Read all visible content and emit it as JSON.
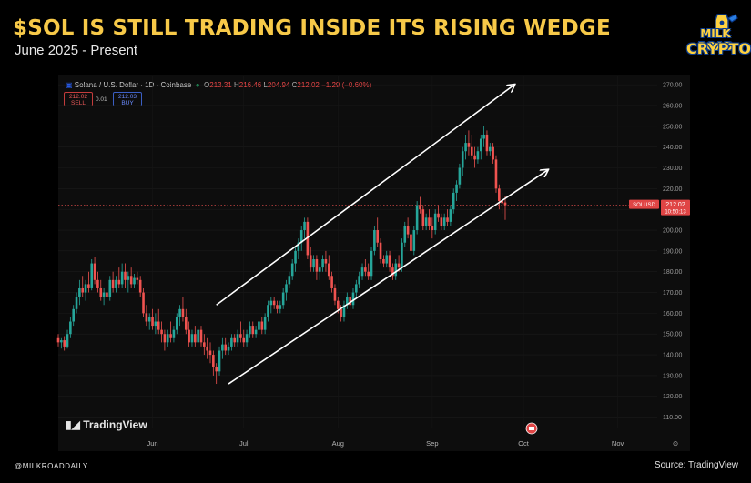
{
  "headline": "$SOL IS STILL TRADING INSIDE ITS RISING WEDGE",
  "subhead": "June 2025 - Present",
  "logo": {
    "line1": "MILK ROAD",
    "line2": "CRYPTO"
  },
  "ohlc": {
    "symbol": "Solana / U.S. Dollar · 1D · Coinbase",
    "o_label": "O",
    "o": "213.31",
    "h_label": "H",
    "h": "216.46",
    "l_label": "L",
    "l": "204.94",
    "c_label": "C",
    "c": "212.02",
    "change": "−1.29 (−0.60%)"
  },
  "trade": {
    "sell_price": "212.02",
    "sell_label": "SELL",
    "spread": "0.01",
    "buy_price": "212.03",
    "buy_label": "BUY"
  },
  "price_tag": {
    "symbol": "SOLUSD",
    "price": "212.02",
    "countdown": "10:50:13"
  },
  "tv_logo": "TradingView",
  "handle": "@MILKROADDAILY",
  "source": "Source: TradingView",
  "colors": {
    "up": "#26a69a",
    "down": "#ef5350",
    "accent": "#f7c948",
    "line": "#ffffff"
  },
  "chart_data": {
    "type": "candlestick",
    "title": "$SOL IS STILL TRADING INSIDE ITS RISING WEDGE",
    "subtitle": "June 2025 - Present",
    "x_labels": [
      "Jun",
      "Jul",
      "Aug",
      "Sep",
      "Oct",
      "Nov"
    ],
    "y_ticks": [
      110,
      120,
      130,
      140,
      150,
      160,
      170,
      180,
      190,
      200,
      210,
      220,
      230,
      240,
      250,
      260,
      270
    ],
    "ylim": [
      105,
      274
    ],
    "current_price": 212.02,
    "trendlines": [
      {
        "name": "upper",
        "from": {
          "x": "2025-06-22",
          "y": 164
        },
        "to": {
          "x": "2025-09-28",
          "y": 270
        }
      },
      {
        "name": "lower",
        "from": {
          "x": "2025-06-26",
          "y": 126
        },
        "to": {
          "x": "2025-10-09",
          "y": 229
        }
      }
    ],
    "ohlc": [
      {
        "d": "2025-05-01",
        "o": 148,
        "h": 150,
        "l": 144,
        "c": 146
      },
      {
        "d": "2025-05-02",
        "o": 146,
        "h": 148,
        "l": 143,
        "c": 147
      },
      {
        "d": "2025-05-03",
        "o": 147,
        "h": 149,
        "l": 142,
        "c": 144
      },
      {
        "d": "2025-05-04",
        "o": 144,
        "h": 152,
        "l": 143,
        "c": 150
      },
      {
        "d": "2025-05-05",
        "o": 150,
        "h": 158,
        "l": 148,
        "c": 156
      },
      {
        "d": "2025-05-06",
        "o": 156,
        "h": 164,
        "l": 154,
        "c": 162
      },
      {
        "d": "2025-05-07",
        "o": 162,
        "h": 170,
        "l": 160,
        "c": 168
      },
      {
        "d": "2025-05-08",
        "o": 168,
        "h": 176,
        "l": 164,
        "c": 172
      },
      {
        "d": "2025-05-09",
        "o": 172,
        "h": 178,
        "l": 168,
        "c": 170
      },
      {
        "d": "2025-05-10",
        "o": 170,
        "h": 176,
        "l": 166,
        "c": 174
      },
      {
        "d": "2025-05-11",
        "o": 174,
        "h": 180,
        "l": 170,
        "c": 172
      },
      {
        "d": "2025-05-12",
        "o": 172,
        "h": 186,
        "l": 171,
        "c": 184
      },
      {
        "d": "2025-05-13",
        "o": 184,
        "h": 187,
        "l": 174,
        "c": 176
      },
      {
        "d": "2025-05-14",
        "o": 176,
        "h": 180,
        "l": 170,
        "c": 172
      },
      {
        "d": "2025-05-15",
        "o": 172,
        "h": 176,
        "l": 166,
        "c": 168
      },
      {
        "d": "2025-05-16",
        "o": 168,
        "h": 172,
        "l": 164,
        "c": 170
      },
      {
        "d": "2025-05-17",
        "o": 170,
        "h": 174,
        "l": 166,
        "c": 168
      },
      {
        "d": "2025-05-18",
        "o": 168,
        "h": 178,
        "l": 166,
        "c": 176
      },
      {
        "d": "2025-05-19",
        "o": 176,
        "h": 180,
        "l": 170,
        "c": 172
      },
      {
        "d": "2025-05-20",
        "o": 172,
        "h": 178,
        "l": 170,
        "c": 176
      },
      {
        "d": "2025-05-21",
        "o": 176,
        "h": 182,
        "l": 172,
        "c": 174
      },
      {
        "d": "2025-05-22",
        "o": 174,
        "h": 184,
        "l": 172,
        "c": 180
      },
      {
        "d": "2025-05-23",
        "o": 180,
        "h": 184,
        "l": 172,
        "c": 176
      },
      {
        "d": "2025-05-24",
        "o": 176,
        "h": 180,
        "l": 170,
        "c": 178
      },
      {
        "d": "2025-05-25",
        "o": 178,
        "h": 182,
        "l": 172,
        "c": 174
      },
      {
        "d": "2025-05-26",
        "o": 174,
        "h": 179,
        "l": 172,
        "c": 177
      },
      {
        "d": "2025-05-27",
        "o": 177,
        "h": 180,
        "l": 174,
        "c": 176
      },
      {
        "d": "2025-05-28",
        "o": 176,
        "h": 178,
        "l": 168,
        "c": 170
      },
      {
        "d": "2025-05-29",
        "o": 170,
        "h": 172,
        "l": 158,
        "c": 160
      },
      {
        "d": "2025-05-30",
        "o": 160,
        "h": 164,
        "l": 154,
        "c": 156
      },
      {
        "d": "2025-05-31",
        "o": 156,
        "h": 160,
        "l": 152,
        "c": 158
      },
      {
        "d": "2025-06-01",
        "o": 158,
        "h": 162,
        "l": 152,
        "c": 154
      },
      {
        "d": "2025-06-02",
        "o": 154,
        "h": 160,
        "l": 150,
        "c": 156
      },
      {
        "d": "2025-06-03",
        "o": 156,
        "h": 162,
        "l": 150,
        "c": 152
      },
      {
        "d": "2025-06-04",
        "o": 152,
        "h": 156,
        "l": 146,
        "c": 150
      },
      {
        "d": "2025-06-05",
        "o": 150,
        "h": 152,
        "l": 142,
        "c": 146
      },
      {
        "d": "2025-06-06",
        "o": 146,
        "h": 152,
        "l": 144,
        "c": 150
      },
      {
        "d": "2025-06-07",
        "o": 150,
        "h": 156,
        "l": 146,
        "c": 148
      },
      {
        "d": "2025-06-08",
        "o": 148,
        "h": 154,
        "l": 146,
        "c": 152
      },
      {
        "d": "2025-06-09",
        "o": 152,
        "h": 160,
        "l": 150,
        "c": 158
      },
      {
        "d": "2025-06-10",
        "o": 158,
        "h": 164,
        "l": 154,
        "c": 162
      },
      {
        "d": "2025-06-11",
        "o": 162,
        "h": 168,
        "l": 156,
        "c": 158
      },
      {
        "d": "2025-06-12",
        "o": 158,
        "h": 162,
        "l": 150,
        "c": 152
      },
      {
        "d": "2025-06-13",
        "o": 152,
        "h": 156,
        "l": 144,
        "c": 146
      },
      {
        "d": "2025-06-14",
        "o": 146,
        "h": 152,
        "l": 144,
        "c": 150
      },
      {
        "d": "2025-06-15",
        "o": 150,
        "h": 154,
        "l": 144,
        "c": 146
      },
      {
        "d": "2025-06-16",
        "o": 146,
        "h": 154,
        "l": 144,
        "c": 152
      },
      {
        "d": "2025-06-17",
        "o": 152,
        "h": 154,
        "l": 144,
        "c": 146
      },
      {
        "d": "2025-06-18",
        "o": 146,
        "h": 150,
        "l": 140,
        "c": 144
      },
      {
        "d": "2025-06-19",
        "o": 144,
        "h": 148,
        "l": 138,
        "c": 142
      },
      {
        "d": "2025-06-20",
        "o": 142,
        "h": 146,
        "l": 136,
        "c": 140
      },
      {
        "d": "2025-06-21",
        "o": 140,
        "h": 142,
        "l": 130,
        "c": 134
      },
      {
        "d": "2025-06-22",
        "o": 134,
        "h": 136,
        "l": 126,
        "c": 132
      },
      {
        "d": "2025-06-23",
        "o": 132,
        "h": 144,
        "l": 130,
        "c": 142
      },
      {
        "d": "2025-06-24",
        "o": 142,
        "h": 148,
        "l": 138,
        "c": 145
      },
      {
        "d": "2025-06-25",
        "o": 145,
        "h": 148,
        "l": 140,
        "c": 142
      },
      {
        "d": "2025-06-26",
        "o": 142,
        "h": 146,
        "l": 140,
        "c": 144
      },
      {
        "d": "2025-06-27",
        "o": 144,
        "h": 150,
        "l": 142,
        "c": 148
      },
      {
        "d": "2025-06-28",
        "o": 148,
        "h": 150,
        "l": 144,
        "c": 146
      },
      {
        "d": "2025-06-29",
        "o": 146,
        "h": 152,
        "l": 144,
        "c": 150
      },
      {
        "d": "2025-06-30",
        "o": 150,
        "h": 156,
        "l": 146,
        "c": 148
      },
      {
        "d": "2025-07-01",
        "o": 148,
        "h": 152,
        "l": 144,
        "c": 146
      },
      {
        "d": "2025-07-02",
        "o": 146,
        "h": 152,
        "l": 144,
        "c": 150
      },
      {
        "d": "2025-07-03",
        "o": 150,
        "h": 156,
        "l": 148,
        "c": 154
      },
      {
        "d": "2025-07-04",
        "o": 154,
        "h": 156,
        "l": 148,
        "c": 150
      },
      {
        "d": "2025-07-05",
        "o": 150,
        "h": 154,
        "l": 148,
        "c": 152
      },
      {
        "d": "2025-07-06",
        "o": 152,
        "h": 158,
        "l": 150,
        "c": 156
      },
      {
        "d": "2025-07-07",
        "o": 156,
        "h": 158,
        "l": 150,
        "c": 152
      },
      {
        "d": "2025-07-08",
        "o": 152,
        "h": 160,
        "l": 150,
        "c": 158
      },
      {
        "d": "2025-07-09",
        "o": 158,
        "h": 166,
        "l": 156,
        "c": 164
      },
      {
        "d": "2025-07-10",
        "o": 164,
        "h": 168,
        "l": 160,
        "c": 166
      },
      {
        "d": "2025-07-11",
        "o": 166,
        "h": 168,
        "l": 162,
        "c": 164
      },
      {
        "d": "2025-07-12",
        "o": 164,
        "h": 166,
        "l": 160,
        "c": 162
      },
      {
        "d": "2025-07-13",
        "o": 162,
        "h": 166,
        "l": 160,
        "c": 164
      },
      {
        "d": "2025-07-14",
        "o": 164,
        "h": 172,
        "l": 162,
        "c": 170
      },
      {
        "d": "2025-07-15",
        "o": 170,
        "h": 176,
        "l": 166,
        "c": 174
      },
      {
        "d": "2025-07-16",
        "o": 174,
        "h": 180,
        "l": 172,
        "c": 178
      },
      {
        "d": "2025-07-17",
        "o": 178,
        "h": 186,
        "l": 176,
        "c": 184
      },
      {
        "d": "2025-07-18",
        "o": 184,
        "h": 192,
        "l": 180,
        "c": 190
      },
      {
        "d": "2025-07-19",
        "o": 190,
        "h": 196,
        "l": 186,
        "c": 194
      },
      {
        "d": "2025-07-20",
        "o": 194,
        "h": 202,
        "l": 190,
        "c": 200
      },
      {
        "d": "2025-07-21",
        "o": 200,
        "h": 206,
        "l": 196,
        "c": 204
      },
      {
        "d": "2025-07-22",
        "o": 204,
        "h": 206,
        "l": 186,
        "c": 188
      },
      {
        "d": "2025-07-23",
        "o": 188,
        "h": 192,
        "l": 180,
        "c": 182
      },
      {
        "d": "2025-07-24",
        "o": 182,
        "h": 188,
        "l": 180,
        "c": 186
      },
      {
        "d": "2025-07-25",
        "o": 186,
        "h": 188,
        "l": 176,
        "c": 180
      },
      {
        "d": "2025-07-26",
        "o": 180,
        "h": 184,
        "l": 176,
        "c": 182
      },
      {
        "d": "2025-07-27",
        "o": 182,
        "h": 188,
        "l": 180,
        "c": 186
      },
      {
        "d": "2025-07-28",
        "o": 186,
        "h": 190,
        "l": 180,
        "c": 184
      },
      {
        "d": "2025-07-29",
        "o": 184,
        "h": 188,
        "l": 176,
        "c": 178
      },
      {
        "d": "2025-07-30",
        "o": 178,
        "h": 180,
        "l": 170,
        "c": 172
      },
      {
        "d": "2025-07-31",
        "o": 172,
        "h": 174,
        "l": 164,
        "c": 166
      },
      {
        "d": "2025-08-01",
        "o": 166,
        "h": 168,
        "l": 160,
        "c": 162
      },
      {
        "d": "2025-08-02",
        "o": 162,
        "h": 164,
        "l": 156,
        "c": 158
      },
      {
        "d": "2025-08-03",
        "o": 158,
        "h": 166,
        "l": 156,
        "c": 164
      },
      {
        "d": "2025-08-04",
        "o": 164,
        "h": 170,
        "l": 162,
        "c": 168
      },
      {
        "d": "2025-08-05",
        "o": 168,
        "h": 170,
        "l": 162,
        "c": 164
      },
      {
        "d": "2025-08-06",
        "o": 164,
        "h": 172,
        "l": 162,
        "c": 170
      },
      {
        "d": "2025-08-07",
        "o": 170,
        "h": 176,
        "l": 168,
        "c": 174
      },
      {
        "d": "2025-08-08",
        "o": 174,
        "h": 180,
        "l": 172,
        "c": 178
      },
      {
        "d": "2025-08-09",
        "o": 178,
        "h": 184,
        "l": 176,
        "c": 182
      },
      {
        "d": "2025-08-10",
        "o": 182,
        "h": 186,
        "l": 178,
        "c": 180
      },
      {
        "d": "2025-08-11",
        "o": 180,
        "h": 184,
        "l": 176,
        "c": 178
      },
      {
        "d": "2025-08-12",
        "o": 178,
        "h": 192,
        "l": 176,
        "c": 190
      },
      {
        "d": "2025-08-13",
        "o": 190,
        "h": 202,
        "l": 188,
        "c": 200
      },
      {
        "d": "2025-08-14",
        "o": 200,
        "h": 206,
        "l": 192,
        "c": 194
      },
      {
        "d": "2025-08-15",
        "o": 194,
        "h": 196,
        "l": 184,
        "c": 186
      },
      {
        "d": "2025-08-16",
        "o": 186,
        "h": 188,
        "l": 182,
        "c": 184
      },
      {
        "d": "2025-08-17",
        "o": 184,
        "h": 190,
        "l": 182,
        "c": 188
      },
      {
        "d": "2025-08-18",
        "o": 188,
        "h": 190,
        "l": 180,
        "c": 182
      },
      {
        "d": "2025-08-19",
        "o": 182,
        "h": 184,
        "l": 176,
        "c": 178
      },
      {
        "d": "2025-08-20",
        "o": 178,
        "h": 186,
        "l": 176,
        "c": 184
      },
      {
        "d": "2025-08-21",
        "o": 184,
        "h": 188,
        "l": 180,
        "c": 182
      },
      {
        "d": "2025-08-22",
        "o": 182,
        "h": 196,
        "l": 180,
        "c": 194
      },
      {
        "d": "2025-08-23",
        "o": 194,
        "h": 204,
        "l": 192,
        "c": 202
      },
      {
        "d": "2025-08-24",
        "o": 202,
        "h": 206,
        "l": 196,
        "c": 198
      },
      {
        "d": "2025-08-25",
        "o": 198,
        "h": 200,
        "l": 188,
        "c": 190
      },
      {
        "d": "2025-08-26",
        "o": 190,
        "h": 202,
        "l": 188,
        "c": 200
      },
      {
        "d": "2025-08-27",
        "o": 200,
        "h": 214,
        "l": 198,
        "c": 212
      },
      {
        "d": "2025-08-28",
        "o": 212,
        "h": 216,
        "l": 208,
        "c": 210
      },
      {
        "d": "2025-08-29",
        "o": 210,
        "h": 212,
        "l": 200,
        "c": 202
      },
      {
        "d": "2025-08-30",
        "o": 202,
        "h": 208,
        "l": 200,
        "c": 206
      },
      {
        "d": "2025-08-31",
        "o": 206,
        "h": 210,
        "l": 200,
        "c": 202
      },
      {
        "d": "2025-09-01",
        "o": 202,
        "h": 206,
        "l": 196,
        "c": 200
      },
      {
        "d": "2025-09-02",
        "o": 200,
        "h": 210,
        "l": 198,
        "c": 208
      },
      {
        "d": "2025-09-03",
        "o": 208,
        "h": 212,
        "l": 204,
        "c": 206
      },
      {
        "d": "2025-09-04",
        "o": 206,
        "h": 208,
        "l": 200,
        "c": 202
      },
      {
        "d": "2025-09-05",
        "o": 202,
        "h": 208,
        "l": 200,
        "c": 206
      },
      {
        "d": "2025-09-06",
        "o": 206,
        "h": 210,
        "l": 202,
        "c": 204
      },
      {
        "d": "2025-09-07",
        "o": 204,
        "h": 212,
        "l": 202,
        "c": 210
      },
      {
        "d": "2025-09-08",
        "o": 210,
        "h": 220,
        "l": 208,
        "c": 218
      },
      {
        "d": "2025-09-09",
        "o": 218,
        "h": 224,
        "l": 214,
        "c": 222
      },
      {
        "d": "2025-09-10",
        "o": 222,
        "h": 232,
        "l": 220,
        "c": 230
      },
      {
        "d": "2025-09-11",
        "o": 230,
        "h": 240,
        "l": 226,
        "c": 238
      },
      {
        "d": "2025-09-12",
        "o": 238,
        "h": 246,
        "l": 234,
        "c": 242
      },
      {
        "d": "2025-09-13",
        "o": 242,
        "h": 248,
        "l": 236,
        "c": 240
      },
      {
        "d": "2025-09-14",
        "o": 240,
        "h": 246,
        "l": 234,
        "c": 236
      },
      {
        "d": "2025-09-15",
        "o": 236,
        "h": 240,
        "l": 230,
        "c": 234
      },
      {
        "d": "2025-09-16",
        "o": 234,
        "h": 240,
        "l": 232,
        "c": 238
      },
      {
        "d": "2025-09-17",
        "o": 238,
        "h": 246,
        "l": 234,
        "c": 244
      },
      {
        "d": "2025-09-18",
        "o": 244,
        "h": 250,
        "l": 240,
        "c": 246
      },
      {
        "d": "2025-09-19",
        "o": 246,
        "h": 248,
        "l": 236,
        "c": 238
      },
      {
        "d": "2025-09-20",
        "o": 238,
        "h": 242,
        "l": 236,
        "c": 240
      },
      {
        "d": "2025-09-21",
        "o": 240,
        "h": 242,
        "l": 232,
        "c": 234
      },
      {
        "d": "2025-09-22",
        "o": 234,
        "h": 236,
        "l": 218,
        "c": 220
      },
      {
        "d": "2025-09-23",
        "o": 220,
        "h": 222,
        "l": 210,
        "c": 214
      },
      {
        "d": "2025-09-24",
        "o": 214,
        "h": 218,
        "l": 208,
        "c": 213
      },
      {
        "d": "2025-09-25",
        "o": 213.31,
        "h": 216.46,
        "l": 204.94,
        "c": 212.02
      }
    ]
  }
}
